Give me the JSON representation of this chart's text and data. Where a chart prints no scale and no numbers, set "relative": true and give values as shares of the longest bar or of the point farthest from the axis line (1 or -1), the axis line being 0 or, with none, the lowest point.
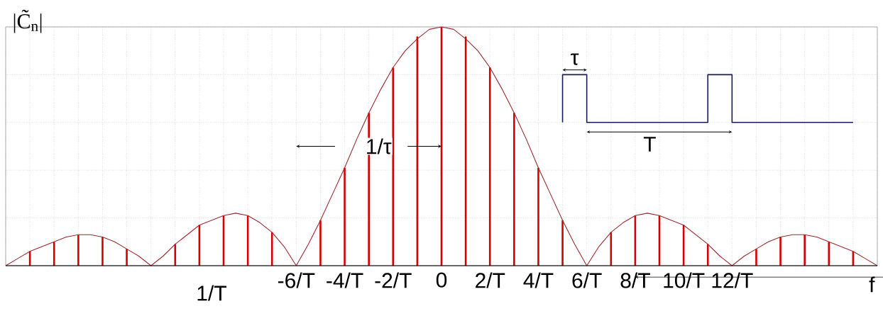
{
  "chart_data": {
    "type": "bar",
    "relative": true,
    "xlabel": "f",
    "ylabel": "|C̃$_{n}$|",
    "xlim": [
      -18,
      18
    ],
    "xticks": [
      {
        "value": -18,
        "label": null
      },
      {
        "value": -17,
        "label": null
      },
      {
        "value": -16,
        "label": null
      },
      {
        "value": -15,
        "label": null
      },
      {
        "value": -14,
        "label": null
      },
      {
        "value": -13,
        "label": null
      },
      {
        "value": -12,
        "label": null
      },
      {
        "value": -11,
        "label": null
      },
      {
        "value": -10,
        "label": null
      },
      {
        "value": -9,
        "label": null
      },
      {
        "value": -8,
        "label": null
      },
      {
        "value": -7,
        "label": null
      },
      {
        "value": -6,
        "label": "-6/T"
      },
      {
        "value": -5,
        "label": null
      },
      {
        "value": -4,
        "label": "-4/T"
      },
      {
        "value": -3,
        "label": null
      },
      {
        "value": -2,
        "label": "-2/T"
      },
      {
        "value": -1,
        "label": null
      },
      0,
      {
        "value": 1,
        "label": null
      },
      {
        "value": 2,
        "label": "2/T"
      },
      {
        "value": 3,
        "label": null
      },
      {
        "value": 4,
        "label": "4/T"
      },
      {
        "value": 5,
        "label": null
      },
      {
        "value": 6,
        "label": "6/T"
      },
      {
        "value": 7,
        "label": null
      },
      {
        "value": 8,
        "label": "8/T"
      },
      {
        "value": 9,
        "label": null
      },
      {
        "value": 10,
        "label": "10/T"
      },
      {
        "value": 11,
        "label": null
      },
      {
        "value": 12,
        "label": "12/T"
      },
      {
        "value": 13,
        "label": null
      },
      {
        "value": 14,
        "label": null
      },
      {
        "value": 15,
        "label": null
      },
      {
        "value": 16,
        "label": null
      },
      {
        "value": 17,
        "label": null
      },
      {
        "value": 18,
        "label": null
      }
    ],
    "grid": true,
    "series": [
      {
        "color": "#d40000",
        "x": [
          -17,
          -16,
          -15,
          -14,
          -13,
          -12,
          -11,
          -10,
          -9,
          -8,
          -7,
          -6,
          -5,
          -4,
          -3,
          -2,
          -1,
          0,
          1,
          2,
          3,
          4,
          5,
          6,
          7,
          8,
          9,
          10,
          11,
          12,
          13,
          14,
          15,
          16,
          17
        ],
        "values": [
          0.06,
          0.1,
          0.13,
          0.12,
          0.07,
          0,
          0.09,
          0.17,
          0.21,
          0.21,
          0.14,
          0,
          0.19,
          0.41,
          0.64,
          0.83,
          0.96,
          1,
          0.96,
          0.83,
          0.64,
          0.41,
          0.19,
          0,
          0.14,
          0.21,
          0.21,
          0.17,
          0.09,
          0,
          0.07,
          0.12,
          0.13,
          0.1,
          0.06
        ]
      },
      {
        "type": "line",
        "color": "#a0282d",
        "x": [
          -18,
          -17.5,
          -17,
          -16.5,
          -16,
          -15.5,
          -15,
          -14.5,
          -14,
          -13.5,
          -13,
          -12.5,
          -12,
          -11.5,
          -11,
          -10.5,
          -10,
          -9.5,
          -9,
          -8.5,
          -8,
          -7.5,
          -7,
          -6.5,
          -6,
          -5.5,
          -5,
          -4.5,
          -4,
          -3.5,
          -3,
          -2.5,
          -2,
          -1.5,
          -1,
          -0.5,
          0,
          0.5,
          1,
          1.5,
          2,
          2.5,
          3,
          3.5,
          4,
          4.5,
          5,
          5.5,
          6,
          6.5,
          7,
          7.5,
          8,
          8.5,
          9,
          9.5,
          10,
          10.5,
          11,
          11.5,
          12,
          12.5,
          13,
          13.5,
          14,
          14.5,
          15,
          15.5,
          16,
          16.5,
          17,
          17.5,
          18
        ],
        "values": [
          0,
          0.03,
          0.06,
          0.08,
          0.1,
          0.12,
          0.13,
          0.13,
          0.12,
          0.1,
          0.07,
          0.04,
          0,
          0.04,
          0.09,
          0.13,
          0.17,
          0.19,
          0.21,
          0.22,
          0.21,
          0.18,
          0.14,
          0.08,
          0,
          0.09,
          0.19,
          0.3,
          0.41,
          0.53,
          0.64,
          0.74,
          0.83,
          0.9,
          0.95,
          0.99,
          1,
          0.99,
          0.95,
          0.9,
          0.83,
          0.74,
          0.64,
          0.53,
          0.41,
          0.3,
          0.19,
          0.09,
          0,
          0.08,
          0.14,
          0.18,
          0.21,
          0.22,
          0.21,
          0.19,
          0.17,
          0.13,
          0.09,
          0.04,
          0,
          0.04,
          0.07,
          0.1,
          0.12,
          0.13,
          0.13,
          0.12,
          0.1,
          0.08,
          0.06,
          0.03,
          0
        ]
      }
    ],
    "annotations": [
      "1/T",
      "1/τ",
      "τ",
      "T"
    ]
  }
}
